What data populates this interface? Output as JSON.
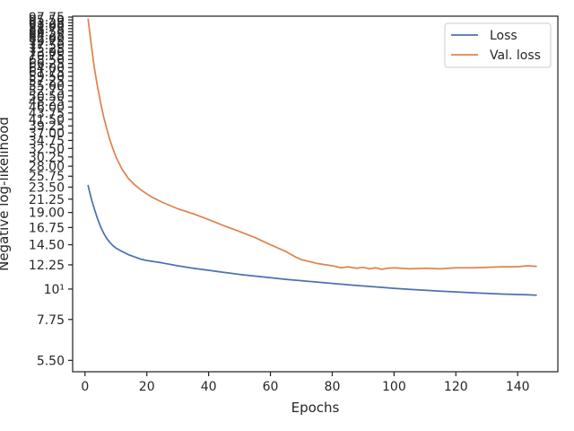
{
  "chart_data": {
    "type": "line",
    "title": "",
    "xlabel": "Epochs",
    "ylabel": "Negative log-likelihood",
    "yscale": "log",
    "xlim": [
      -4,
      153
    ],
    "ylim": [
      5.0,
      98.5
    ],
    "grid": false,
    "legend_position": "upper right",
    "x_ticks": [
      0,
      20,
      40,
      60,
      80,
      100,
      120,
      140
    ],
    "x_tick_labels": [
      "0",
      "20",
      "40",
      "60",
      "80",
      "100",
      "120",
      "140"
    ],
    "y_ticks": [
      5.5,
      7.75,
      10,
      12.25,
      14.5,
      16.75,
      19.0,
      21.25,
      23.5,
      25.75,
      28.0,
      30.25,
      32.5,
      34.75,
      37.0,
      39.25,
      41.5,
      43.75,
      46.0,
      48.25,
      50.5,
      52.75,
      55.0,
      57.25,
      59.5,
      61.75,
      64.0,
      66.25,
      68.5,
      70.75,
      73.0,
      75.25,
      77.5,
      79.75,
      82.0,
      84.25,
      86.5,
      88.75,
      91.0,
      93.25,
      95.5,
      97.75
    ],
    "y_tick_labels": [
      "5.50",
      "7.75",
      "10¹",
      "12.25",
      "14.50",
      "16.75",
      "19.00",
      "21.25",
      "23.50",
      "25.75",
      "28.00",
      "30.25",
      "32.50",
      "34.75",
      "37.00",
      "39.25",
      "41.50",
      "43.75",
      "46.00",
      "48.25",
      "50.50",
      "52.75",
      "55.00",
      "57.25",
      "59.50",
      "61.75",
      "64.00",
      "66.25",
      "68.50",
      "70.75",
      "73.00",
      "75.25",
      "77.50",
      "79.75",
      "82.00",
      "84.25",
      "86.50",
      "88.75",
      "91.00",
      "93.25",
      "95.50",
      "97.75"
    ],
    "series": [
      {
        "name": "Loss",
        "color": "#4c72b0",
        "x": [
          1,
          2,
          3,
          4,
          5,
          6,
          7,
          8,
          9,
          10,
          12,
          14,
          16,
          18,
          20,
          25,
          30,
          35,
          40,
          45,
          50,
          55,
          60,
          65,
          70,
          75,
          80,
          85,
          90,
          95,
          100,
          105,
          110,
          115,
          120,
          125,
          130,
          135,
          140,
          143,
          146
        ],
        "y": [
          23.8,
          21.4,
          19.6,
          18.1,
          16.9,
          16.0,
          15.3,
          14.8,
          14.4,
          14.1,
          13.7,
          13.35,
          13.1,
          12.85,
          12.7,
          12.45,
          12.15,
          11.9,
          11.7,
          11.5,
          11.3,
          11.15,
          11.0,
          10.85,
          10.72,
          10.6,
          10.48,
          10.37,
          10.26,
          10.16,
          10.06,
          9.97,
          9.9,
          9.83,
          9.76,
          9.7,
          9.64,
          9.59,
          9.55,
          9.53,
          9.5
        ]
      },
      {
        "name": "Val. loss",
        "color": "#dd8452",
        "x": [
          1,
          2,
          3,
          4,
          5,
          6,
          7,
          8,
          9,
          10,
          12,
          14,
          16,
          18,
          20,
          22,
          25,
          30,
          35,
          40,
          45,
          50,
          55,
          60,
          65,
          68,
          70,
          75,
          80,
          83,
          85,
          88,
          90,
          92,
          94,
          96,
          98,
          100,
          105,
          110,
          115,
          120,
          125,
          130,
          135,
          140,
          143,
          146
        ],
        "y": [
          96.0,
          78.0,
          64.0,
          55.0,
          48.0,
          42.5,
          38.5,
          35.0,
          32.5,
          30.3,
          27.3,
          25.3,
          24.0,
          23.0,
          22.2,
          21.5,
          20.7,
          19.6,
          18.8,
          17.9,
          17.0,
          16.2,
          15.4,
          14.5,
          13.7,
          13.1,
          12.8,
          12.4,
          12.15,
          11.95,
          12.05,
          11.9,
          12.0,
          11.85,
          11.95,
          11.8,
          11.9,
          11.95,
          11.85,
          11.9,
          11.85,
          11.95,
          11.95,
          12.0,
          12.05,
          12.05,
          12.15,
          12.1
        ]
      }
    ]
  }
}
